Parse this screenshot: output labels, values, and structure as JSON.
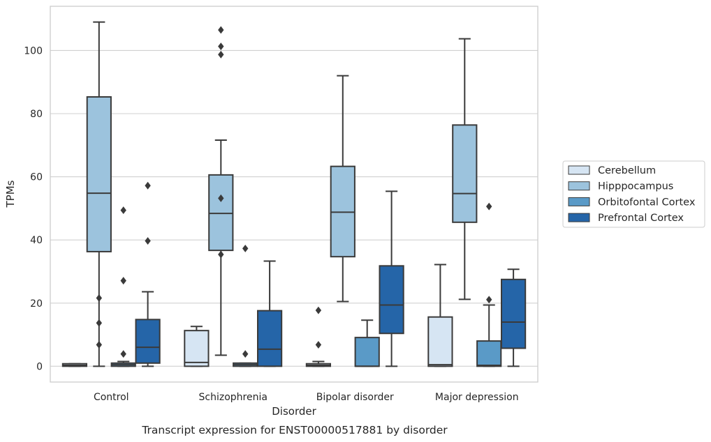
{
  "chart_data": {
    "type": "box",
    "title": "",
    "caption": "Transcript expression for ENST00000517881 by disorder",
    "xlabel": "Disorder",
    "ylabel": "TPMs",
    "ylim": [
      -5,
      114
    ],
    "yticks": [
      0,
      20,
      40,
      60,
      80,
      100
    ],
    "grid": "horizontal",
    "legend_position": "right",
    "categories": [
      "Control",
      "Schizophrenia",
      "Bipolar disorder",
      "Major depression"
    ],
    "series": [
      {
        "name": "Cerebellum",
        "color": "#d6e5f3",
        "boxes": [
          {
            "whislo": 0,
            "q1": 0,
            "med": 0.3,
            "q3": 0.8,
            "whishi": 0.8,
            "fliers": []
          },
          {
            "whislo": 0,
            "q1": 0,
            "med": 1.2,
            "q3": 11.3,
            "whishi": 12.6,
            "fliers": []
          },
          {
            "whislo": 0,
            "q1": 0,
            "med": 0.3,
            "q3": 0.8,
            "whishi": 1.5,
            "fliers": [
              6.8,
              17.7
            ]
          },
          {
            "whislo": 0,
            "q1": 0,
            "med": 0.5,
            "q3": 15.6,
            "whishi": 32.2,
            "fliers": []
          }
        ]
      },
      {
        "name": "Hipppocampus",
        "color": "#9cc3dd",
        "boxes": [
          {
            "whislo": 0,
            "q1": 36.3,
            "med": 54.8,
            "q3": 85.3,
            "whishi": 109,
            "fliers": [
              6.8,
              13.7,
              21.6
            ]
          },
          {
            "whislo": 3.5,
            "q1": 36.7,
            "med": 48.4,
            "q3": 60.6,
            "whishi": 71.6,
            "fliers": [
              35.4,
              53.2,
              98.7,
              101.3,
              106.5
            ]
          },
          {
            "whislo": 20.5,
            "q1": 34.7,
            "med": 48.8,
            "q3": 63.3,
            "whishi": 92,
            "fliers": []
          },
          {
            "whislo": 21.2,
            "q1": 45.6,
            "med": 54.7,
            "q3": 76.4,
            "whishi": 103.7,
            "fliers": []
          }
        ]
      },
      {
        "name": "Orbitofontal Cortex",
        "color": "#5a9ac7",
        "boxes": [
          {
            "whislo": 0,
            "q1": 0,
            "med": 0.5,
            "q3": 1.0,
            "whishi": 1.5,
            "fliers": [
              3.9,
              27.1,
              49.4
            ]
          },
          {
            "whislo": 0,
            "q1": 0,
            "med": 0.5,
            "q3": 1.0,
            "whishi": 1.0,
            "fliers": [
              3.9,
              37.3
            ]
          },
          {
            "whislo": 0,
            "q1": 0,
            "med": 0,
            "q3": 9.1,
            "whishi": 14.6,
            "fliers": []
          },
          {
            "whislo": 0,
            "q1": 0,
            "med": 0.3,
            "q3": 8.0,
            "whishi": 19.4,
            "fliers": [
              21.1,
              50.6
            ]
          }
        ]
      },
      {
        "name": "Prefrontal Cortex",
        "color": "#2565a8",
        "boxes": [
          {
            "whislo": 0,
            "q1": 1.0,
            "med": 6.0,
            "q3": 14.8,
            "whishi": 23.6,
            "fliers": [
              39.7,
              57.2
            ]
          },
          {
            "whislo": 0,
            "q1": 0,
            "med": 5.4,
            "q3": 17.6,
            "whishi": 33.3,
            "fliers": []
          },
          {
            "whislo": 0,
            "q1": 10.4,
            "med": 19.4,
            "q3": 31.8,
            "whishi": 55.4,
            "fliers": []
          },
          {
            "whislo": 0,
            "q1": 5.7,
            "med": 14.0,
            "q3": 27.5,
            "whishi": 30.7,
            "fliers": []
          }
        ]
      }
    ]
  }
}
